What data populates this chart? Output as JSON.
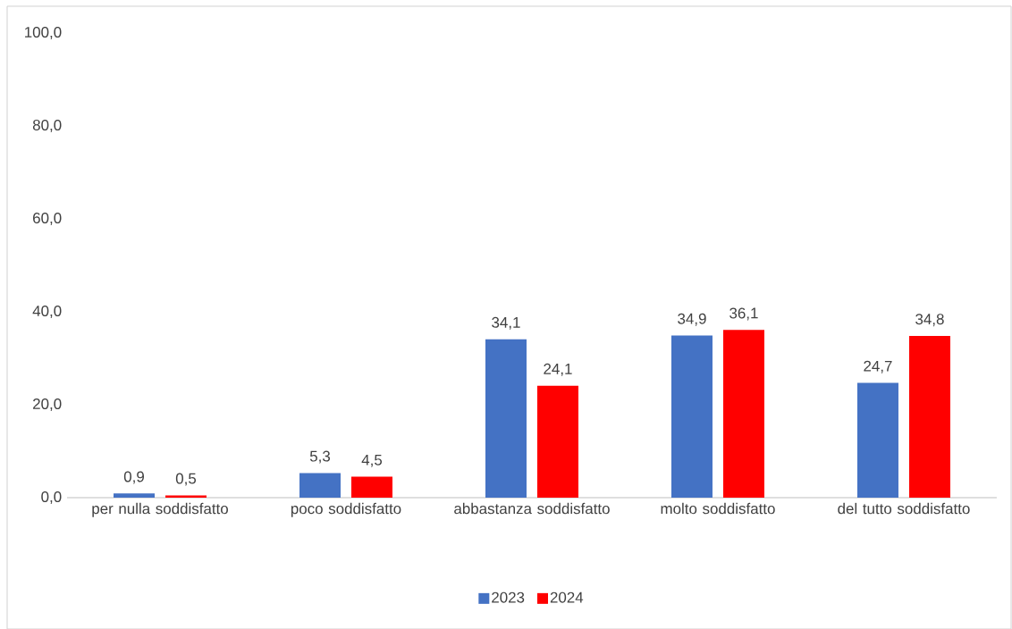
{
  "chart_data": {
    "type": "bar",
    "categories": [
      "per nulla soddisfatto",
      "poco soddisfatto",
      "abbastanza soddisfatto",
      "molto soddisfatto",
      "del tutto soddisfatto"
    ],
    "series": [
      {
        "name": "2023",
        "color": "#4472c4",
        "values": [
          0.9,
          5.3,
          34.1,
          34.9,
          24.7
        ],
        "value_labels": [
          "0,9",
          "5,3",
          "34,1",
          "34,9",
          "24,7"
        ]
      },
      {
        "name": "2024",
        "color": "#ff0000",
        "values": [
          0.5,
          4.5,
          24.1,
          36.1,
          34.8
        ],
        "value_labels": [
          "0,5",
          "4,5",
          "24,1",
          "36,1",
          "34,8"
        ]
      }
    ],
    "ylim": [
      0,
      100
    ],
    "yticks": [
      {
        "value": 0,
        "label": "0,0"
      },
      {
        "value": 20,
        "label": "20,0"
      },
      {
        "value": 40,
        "label": "40,0"
      },
      {
        "value": 60,
        "label": "60,0"
      },
      {
        "value": 80,
        "label": "80,0"
      },
      {
        "value": 100,
        "label": "100,0"
      }
    ],
    "grid": false,
    "legend": "bottom"
  }
}
